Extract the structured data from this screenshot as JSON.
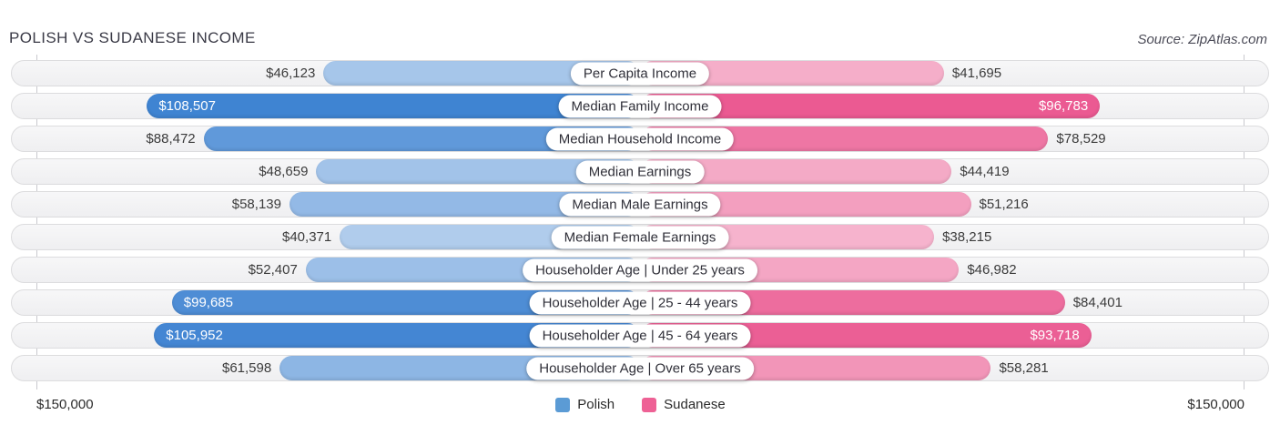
{
  "header": {
    "title": "POLISH VS SUDANESE INCOME",
    "source": "Source: ZipAtlas.com"
  },
  "axis": {
    "left": "$150,000",
    "right": "$150,000"
  },
  "legend": [
    {
      "label": "Polish",
      "color": "#5b9bd5"
    },
    {
      "label": "Sudanese",
      "color": "#ee6195"
    }
  ],
  "chart_data": {
    "type": "bar",
    "orientation": "horizontal-diverging",
    "title": "POLISH VS SUDANESE INCOME",
    "source": "Source: ZipAtlas.com",
    "axis_max": 150000,
    "axis_end_labels": [
      "$150,000",
      "$150,000"
    ],
    "legend_position": "bottom-center",
    "categories": [
      "Per Capita Income",
      "Median Family Income",
      "Median Household Income",
      "Median Earnings",
      "Median Male Earnings",
      "Median Female Earnings",
      "Householder Age | Under 25 years",
      "Householder Age | 25 - 44 years",
      "Householder Age | 45 - 64 years",
      "Householder Age | Over 65 years"
    ],
    "series": [
      {
        "name": "Polish",
        "side": "left",
        "color": "#5b9bd5",
        "values": [
          46123,
          108507,
          88472,
          48659,
          58139,
          40371,
          52407,
          99685,
          105952,
          61598
        ],
        "labels": [
          "$46,123",
          "$108,507",
          "$88,472",
          "$48,659",
          "$58,139",
          "$40,371",
          "$52,407",
          "$99,685",
          "$105,952",
          "$61,598"
        ]
      },
      {
        "name": "Sudanese",
        "side": "right",
        "color": "#ee6195",
        "values": [
          41695,
          96783,
          78529,
          44419,
          51216,
          38215,
          46982,
          84401,
          93718,
          58281
        ],
        "labels": [
          "$41,695",
          "$96,783",
          "$78,529",
          "$44,419",
          "$51,216",
          "$38,215",
          "$46,982",
          "$84,401",
          "$93,718",
          "$58,281"
        ]
      }
    ]
  }
}
